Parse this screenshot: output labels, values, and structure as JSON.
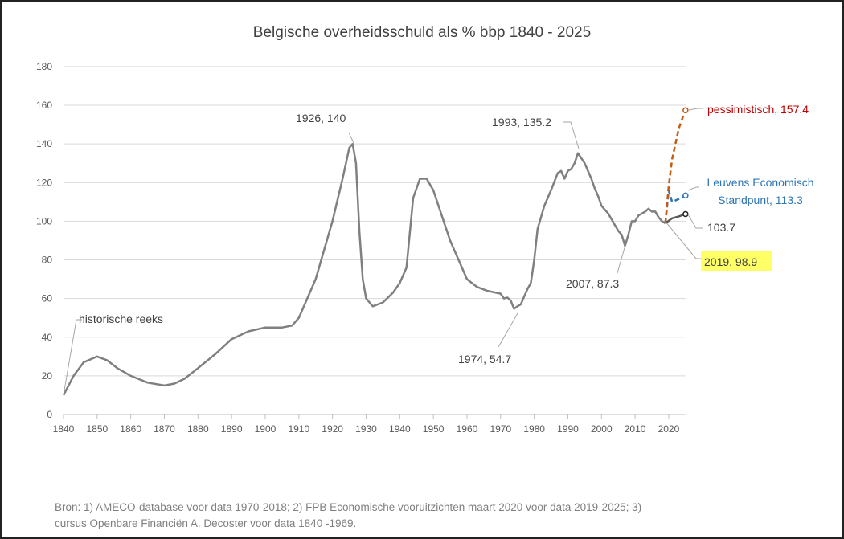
{
  "chart_data": {
    "type": "line",
    "title": "Belgische overheidsschuld  als % bbp 1840 - 2025",
    "xlabel": "",
    "ylabel": "",
    "xlim": [
      1840,
      2025
    ],
    "ylim": [
      0,
      180
    ],
    "x_ticks": [
      1840,
      1850,
      1860,
      1870,
      1880,
      1890,
      1900,
      1910,
      1920,
      1930,
      1940,
      1950,
      1960,
      1970,
      1980,
      1990,
      2000,
      2010,
      2020
    ],
    "y_ticks": [
      0,
      20,
      40,
      60,
      80,
      100,
      120,
      140,
      160,
      180
    ],
    "grid": true,
    "legend": "none",
    "series": [
      {
        "key": "historical",
        "color": "#808080",
        "style": "solid",
        "x": [
          1840,
          1843,
          1846,
          1850,
          1853,
          1856,
          1860,
          1865,
          1870,
          1873,
          1876,
          1880,
          1885,
          1890,
          1895,
          1900,
          1905,
          1908,
          1910,
          1915,
          1920,
          1923,
          1925,
          1926,
          1927,
          1928,
          1929,
          1930,
          1932,
          1935,
          1938,
          1940,
          1942,
          1944,
          1946,
          1948,
          1950,
          1955,
          1960,
          1963,
          1966,
          1970,
          1971,
          1972,
          1973,
          1974,
          1975,
          1976,
          1978,
          1979,
          1980,
          1981,
          1983,
          1985,
          1987,
          1988,
          1989,
          1990,
          1991,
          1992,
          1993,
          1995,
          1997,
          1998,
          1999,
          2000,
          2002,
          2004,
          2005,
          2006,
          2007,
          2008,
          2009,
          2010,
          2011,
          2012,
          2013,
          2014,
          2015,
          2016,
          2017,
          2018,
          2019
        ],
        "y": [
          10,
          20,
          27,
          30,
          28,
          24,
          20,
          16.5,
          15,
          16,
          18.5,
          24,
          31,
          39,
          43,
          45,
          45,
          46,
          50,
          70,
          100,
          122,
          138,
          140,
          130,
          95,
          70,
          60,
          56,
          58,
          63,
          68,
          76,
          112,
          122,
          122,
          116,
          90,
          70,
          66,
          64,
          62.5,
          60,
          60.5,
          59,
          54.7,
          56,
          57,
          65,
          68,
          80,
          96,
          108,
          116,
          125,
          126,
          122,
          126,
          127,
          130,
          135.2,
          130,
          122,
          117,
          113,
          108,
          104,
          98,
          95,
          93,
          87.3,
          93,
          100,
          100,
          103,
          104,
          105,
          106.5,
          105,
          105,
          102,
          100,
          98.9
        ]
      },
      {
        "key": "baseline",
        "color": "#595959",
        "style": "solid",
        "x": [
          2019,
          2021,
          2023,
          2025
        ],
        "y": [
          98.9,
          101.5,
          102.5,
          103.7
        ]
      },
      {
        "key": "leuvens",
        "color": "#2e75b6",
        "style": "dashed",
        "x": [
          2019,
          2020,
          2021,
          2023,
          2025
        ],
        "y": [
          98.9,
          116,
          110,
          111.5,
          113.3
        ]
      },
      {
        "key": "pessimistisch",
        "color": "#c55a11",
        "style": "dashed",
        "x": [
          2019,
          2020,
          2021,
          2022,
          2023,
          2024,
          2025
        ],
        "y": [
          98.9,
          118,
          132,
          140,
          148,
          153,
          157.4
        ]
      }
    ],
    "annotations": [
      {
        "text": "historische reeks",
        "x": 1840,
        "y": 10
      },
      {
        "text": "1926, 140",
        "x": 1926,
        "y": 140
      },
      {
        "text": "1993, 135.2",
        "x": 1993,
        "y": 135.2
      },
      {
        "text": "1974, 54.7",
        "x": 1974,
        "y": 54.7
      },
      {
        "text": "2007, 87.3",
        "x": 2007,
        "y": 87.3
      },
      {
        "text": "2019, 98.9",
        "x": 2019,
        "y": 98.9,
        "highlight": "#ffff66"
      },
      {
        "text": "103.7",
        "x": 2025,
        "y": 103.7,
        "color": "#404040"
      },
      {
        "text": "Leuvens Economisch",
        "text2": "Standpunt, 113.3",
        "x": 2025,
        "y": 113.3,
        "color": "#2e75b6"
      },
      {
        "text": "pessimistisch, 157.4",
        "x": 2025,
        "y": 157.4,
        "color": "#c00000"
      }
    ]
  },
  "source": {
    "line1": "Bron:  1) AMECO-database voor data 1970-2018; 2) FPB Economische vooruitzichten maart 2020 voor data 2019-2025; 3)",
    "line2": "cursus Openbare Financiën A. Decoster voor data 1840 -1969."
  }
}
